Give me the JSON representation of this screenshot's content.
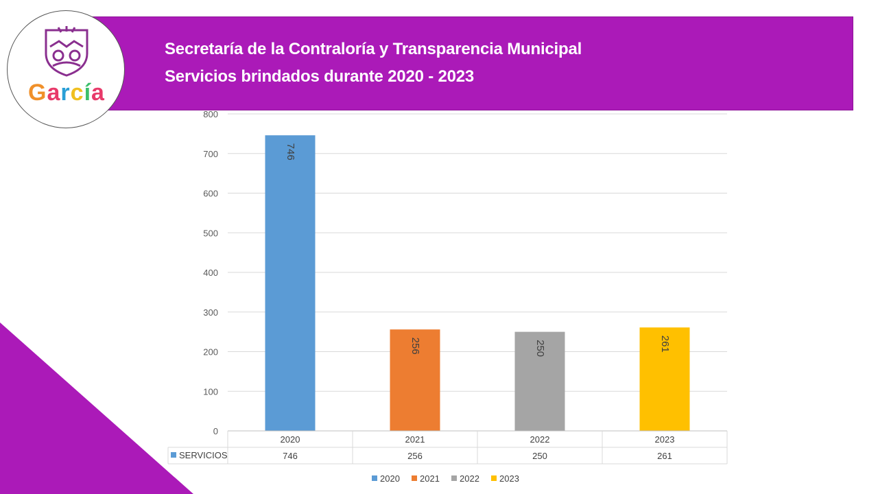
{
  "header": {
    "line1": "Secretaría de la Contraloría y Transparencia Municipal",
    "line2": "Servicios brindados durante 2020 - 2023"
  },
  "logo": {
    "letters": [
      "G",
      "a",
      "r",
      "c",
      "í",
      "a"
    ],
    "letter_colors": [
      "#f0902a",
      "#e83a6a",
      "#2a9fd6",
      "#f0c020",
      "#3bbf6a",
      "#e83a6a"
    ],
    "emblem_color": "#8a2f8f"
  },
  "colors": {
    "banner": "#ab1ab8",
    "triangle": "#ab1ab8"
  },
  "chart_data": {
    "type": "bar",
    "title": "",
    "xlabel": "",
    "ylabel": "",
    "categories": [
      "2020",
      "2021",
      "2022",
      "2023"
    ],
    "values": [
      746,
      256,
      250,
      261
    ],
    "colors": [
      "#5b9bd5",
      "#ed7d31",
      "#a5a5a5",
      "#ffc000"
    ],
    "ylim": [
      0,
      800
    ],
    "yticks": [
      0,
      100,
      200,
      300,
      400,
      500,
      600,
      700,
      800
    ],
    "grid": true,
    "data_table": {
      "row_label": "SERVICIOS",
      "values": [
        "746",
        "256",
        "250",
        "261"
      ]
    },
    "legend": [
      "2020",
      "2021",
      "2022",
      "2023"
    ],
    "legend_position": "bottom"
  }
}
